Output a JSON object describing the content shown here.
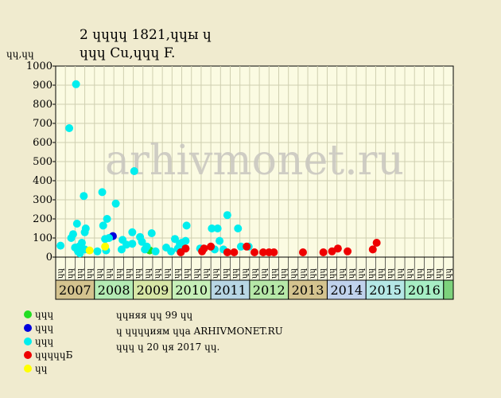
{
  "chart_data": {
    "type": "scatter",
    "title": "2 ɥɥɥɥ 1821,ɥɥы ɥ",
    "subtitle": "ɥɥɥ Cu,ɥɥɥ F.",
    "ylabel": "ɥɥ,ɥɥ",
    "ylim": [
      0,
      1000
    ],
    "yticks": [
      0,
      100,
      200,
      300,
      400,
      500,
      600,
      700,
      800,
      900,
      1000
    ],
    "watermark": "arhivmonet.ru",
    "month_labels": [
      "ɥɥ",
      "ɥɥ",
      "ɥɥ",
      "ɥɥ",
      "ɥɥ",
      "ɥɥ",
      "ɥɥ",
      "ɥɥ",
      "ɥɥ",
      "ɥɥ",
      "ɥɥ",
      "ɥɥ",
      "ɥɥ",
      "ɥɥ",
      "ɥɥ",
      "ɥɥ",
      "ɥɥ",
      "ɥɥ",
      "ɥɥ",
      "ɥɥ",
      "ɥɥ",
      "ɥɥ",
      "ɥɥ",
      "ɥɥ",
      "ɥɥ",
      "ɥɥ",
      "ɥɥ",
      "ɥɥ",
      "ɥɥ",
      "ɥɥ",
      "ɥɥ",
      "ɥɥ",
      "ɥɥ",
      "ɥɥ",
      "ɥɥ",
      "ɥɥ",
      "ɥɥ",
      "ɥɥ",
      "ɥɥ",
      "ɥɥ",
      "ɥɥ"
    ],
    "years": [
      {
        "label": "2007",
        "color": "#d4c38f"
      },
      {
        "label": "2008",
        "color": "#b4ebb4"
      },
      {
        "label": "2009",
        "color": "#d7e6a6"
      },
      {
        "label": "2010",
        "color": "#c6f0b8"
      },
      {
        "label": "2011",
        "color": "#b8d6e4"
      },
      {
        "label": "2012",
        "color": "#b6e8a8"
      },
      {
        "label": "2013",
        "color": "#d4c38f"
      },
      {
        "label": "2014",
        "color": "#c0d2ec"
      },
      {
        "label": "2015",
        "color": "#b5e7e5"
      },
      {
        "label": "2016",
        "color": "#a7eec4"
      }
    ],
    "series": [
      {
        "name": "ɥɥɥ",
        "color": "#22dd22",
        "points": [
          [
            9.2,
            35
          ]
        ]
      },
      {
        "name": "ɥɥɥ",
        "color": "#0000dd",
        "points": [
          [
            5.4,
            110
          ]
        ]
      },
      {
        "name": "ɥɥɥ",
        "color": "#00eeee",
        "points": [
          [
            0,
            60
          ],
          [
            0.9,
            675
          ],
          [
            1.1,
            100
          ],
          [
            1.3,
            120
          ],
          [
            1.5,
            50
          ],
          [
            1.6,
            905
          ],
          [
            1.7,
            175
          ],
          [
            1.8,
            30
          ],
          [
            1.9,
            55
          ],
          [
            2.0,
            20
          ],
          [
            2.1,
            40
          ],
          [
            2.2,
            75
          ],
          [
            2.4,
            320
          ],
          [
            2.5,
            130
          ],
          [
            2.6,
            150
          ],
          [
            2.5,
            40
          ],
          [
            3.8,
            30
          ],
          [
            4.3,
            340
          ],
          [
            4.4,
            165
          ],
          [
            4.6,
            95
          ],
          [
            4.8,
            200
          ],
          [
            5.0,
            100
          ],
          [
            4.7,
            35
          ],
          [
            5.7,
            280
          ],
          [
            6.3,
            40
          ],
          [
            6.4,
            90
          ],
          [
            6.8,
            65
          ],
          [
            7.4,
            130
          ],
          [
            7.6,
            450
          ],
          [
            7.4,
            70
          ],
          [
            8.2,
            105
          ],
          [
            8.4,
            80
          ],
          [
            8.7,
            40
          ],
          [
            8.9,
            55
          ],
          [
            9.4,
            125
          ],
          [
            9.8,
            30
          ],
          [
            10.9,
            50
          ],
          [
            11.4,
            30
          ],
          [
            11.8,
            95
          ],
          [
            12.1,
            45
          ],
          [
            12.3,
            70
          ],
          [
            12.5,
            75
          ],
          [
            12.9,
            85
          ],
          [
            13.0,
            165
          ],
          [
            14.4,
            45
          ],
          [
            15.6,
            150
          ],
          [
            15.9,
            40
          ],
          [
            16.2,
            150
          ],
          [
            16.4,
            85
          ],
          [
            16.8,
            40
          ],
          [
            17.2,
            220
          ],
          [
            18.3,
            150
          ],
          [
            18.6,
            55
          ],
          [
            19.4,
            55
          ]
        ]
      },
      {
        "name": "ɥɥɥɥɥБ",
        "color": "#ee0000",
        "points": [
          [
            12.4,
            25
          ],
          [
            12.9,
            45
          ],
          [
            14.6,
            30
          ],
          [
            14.8,
            45
          ],
          [
            15.5,
            55
          ],
          [
            17.2,
            25
          ],
          [
            17.9,
            25
          ],
          [
            19.2,
            55
          ],
          [
            20.0,
            25
          ],
          [
            20.9,
            25
          ],
          [
            21.5,
            25
          ],
          [
            22.0,
            25
          ],
          [
            25.0,
            25
          ],
          [
            27.1,
            25
          ],
          [
            28.0,
            30
          ],
          [
            28.6,
            45
          ],
          [
            29.6,
            30
          ],
          [
            32.2,
            40
          ],
          [
            32.6,
            75
          ]
        ]
      },
      {
        "name": "ɥɥ",
        "color": "#ffff00",
        "points": [
          [
            3.0,
            35
          ],
          [
            4.6,
            55
          ]
        ]
      }
    ]
  },
  "notes": [
    "ɥɥняя ɥɥ 99 ɥɥ",
    "ɥ ɥɥɥɥиям ɥɥа ARHIVMONET.RU",
    "ɥɥɥ ɥ 20 ɥя 2017 ɥɥ."
  ]
}
